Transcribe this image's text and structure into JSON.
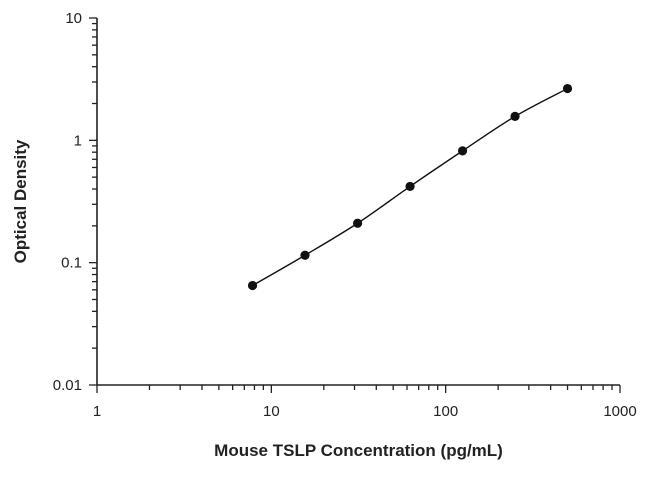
{
  "chart_data": {
    "type": "scatter",
    "title": "",
    "xlabel": "Mouse TSLP Concentration (pg/mL)",
    "ylabel": "Optical Density",
    "x_scale": "log",
    "y_scale": "log",
    "xlim": [
      1,
      1000
    ],
    "ylim": [
      0.01,
      10
    ],
    "x_tick_labels": [
      "1",
      "10",
      "100",
      "1000"
    ],
    "y_tick_labels": [
      "0.01",
      "0.1",
      "1",
      "10"
    ],
    "x_ticks": [
      1,
      10,
      100,
      1000
    ],
    "y_ticks": [
      0.01,
      0.1,
      1,
      10
    ],
    "grid": false,
    "legend": "none",
    "fit_curve": true,
    "series": [
      {
        "x": [
          7.8,
          15.6,
          31.25,
          62.5,
          125,
          250,
          500
        ],
        "y": [
          0.065,
          0.115,
          0.21,
          0.42,
          0.82,
          1.57,
          2.65
        ]
      }
    ]
  }
}
